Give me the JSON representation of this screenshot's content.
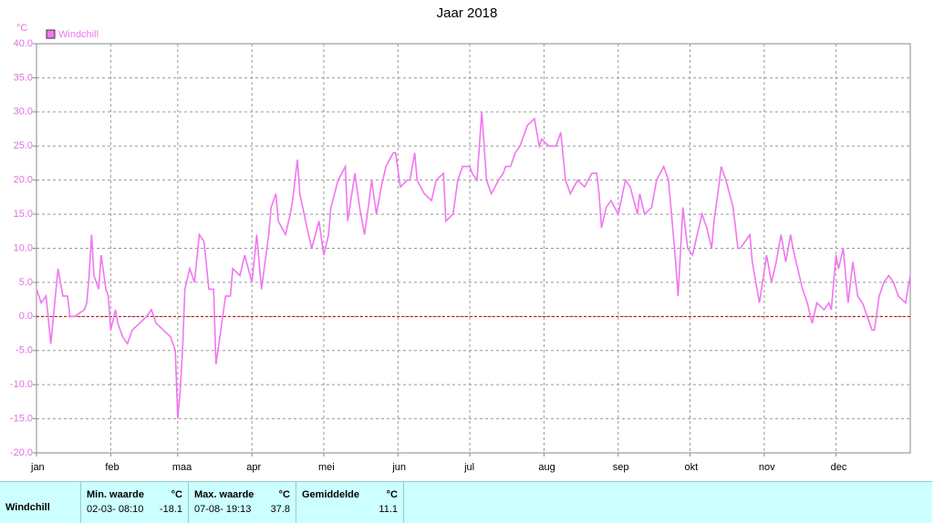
{
  "chart_data": {
    "type": "line",
    "title": "Jaar 2018",
    "y_label": "°C",
    "xlim": [
      0,
      365
    ],
    "xticks": [
      {
        "value": 0,
        "label": "jan"
      },
      {
        "value": 31,
        "label": "feb"
      },
      {
        "value": 59,
        "label": "maa"
      },
      {
        "value": 90,
        "label": "apr"
      },
      {
        "value": 120,
        "label": "mei"
      },
      {
        "value": 151,
        "label": "jun"
      },
      {
        "value": 181,
        "label": "jul"
      },
      {
        "value": 212,
        "label": "aug"
      },
      {
        "value": 243,
        "label": "sep"
      },
      {
        "value": 273,
        "label": "okt"
      },
      {
        "value": 304,
        "label": "nov"
      },
      {
        "value": 334,
        "label": "dec"
      }
    ],
    "ylim": [
      -20,
      40
    ],
    "yticks": [
      {
        "value": 40,
        "label": "40.0"
      },
      {
        "value": 35,
        "label": "35.0"
      },
      {
        "value": 30,
        "label": "30.0"
      },
      {
        "value": 25,
        "label": "25.0"
      },
      {
        "value": 20,
        "label": "20.0"
      },
      {
        "value": 15,
        "label": "15.0"
      },
      {
        "value": 10,
        "label": "10.0"
      },
      {
        "value": 5,
        "label": "5.0"
      },
      {
        "value": 0,
        "label": "0.0"
      },
      {
        "value": -5,
        "label": "-5.0"
      },
      {
        "value": -10,
        "label": "-10.0"
      },
      {
        "value": -15,
        "label": "-15.0"
      },
      {
        "value": -20,
        "label": "-20.0"
      }
    ],
    "grid": true,
    "hline": 0,
    "hline_color": "#cc0000",
    "legend": "top-left",
    "series": [
      {
        "name": "Windchill",
        "color": "#f077f0",
        "x": [
          0,
          2,
          4,
          6,
          9,
          11,
          13,
          14,
          16,
          20,
          21,
          22,
          23,
          24,
          26,
          27,
          29,
          30,
          31,
          33,
          34,
          36,
          38,
          40,
          43,
          46,
          48,
          50,
          53,
          56,
          58,
          59,
          60,
          61,
          62,
          64,
          66,
          68,
          70,
          72,
          74,
          75,
          77,
          79,
          81,
          82,
          85,
          87,
          90,
          92,
          94,
          97,
          98,
          100,
          101,
          104,
          106,
          107,
          109,
          110,
          113,
          115,
          118,
          120,
          122,
          123,
          126,
          129,
          130,
          133,
          135,
          137,
          139,
          140,
          142,
          144,
          146,
          149,
          150,
          152,
          155,
          156,
          158,
          159,
          162,
          165,
          167,
          170,
          171,
          174,
          176,
          178,
          181,
          182,
          184,
          186,
          188,
          190,
          193,
          195,
          196,
          198,
          200,
          202,
          205,
          208,
          210,
          211,
          214,
          217,
          219,
          221,
          223,
          226,
          229,
          232,
          234,
          235,
          236,
          238,
          240,
          243,
          246,
          248,
          251,
          252,
          254,
          257,
          259,
          262,
          264,
          266,
          267,
          268,
          270,
          272,
          274,
          276,
          278,
          280,
          282,
          283,
          285,
          286,
          288,
          291,
          293,
          294,
          296,
          298,
          299,
          301,
          302,
          305,
          307,
          309,
          311,
          313,
          315,
          316,
          318,
          320,
          322,
          324,
          326,
          329,
          331,
          332,
          334,
          335,
          337,
          339,
          341,
          343,
          345,
          347,
          349,
          350,
          352,
          354,
          356,
          358,
          360,
          363,
          365
        ],
        "values": [
          4,
          2,
          3,
          -4,
          7,
          3,
          3,
          0,
          0,
          1,
          2,
          6,
          12,
          6,
          4,
          9,
          4,
          3,
          -2,
          1,
          -1,
          -3,
          -4,
          -2,
          -1,
          0,
          1,
          -1,
          -2,
          -3,
          -5,
          -15,
          -11,
          -5,
          4,
          7,
          5,
          12,
          11,
          4,
          4,
          -7,
          -2,
          3,
          3,
          7,
          6,
          9,
          5,
          12,
          4,
          12,
          16,
          18,
          14,
          12,
          15,
          17,
          23,
          18,
          13,
          10,
          14,
          9,
          12,
          16,
          20,
          22,
          14,
          21,
          16,
          12,
          17,
          20,
          15,
          19,
          22,
          24,
          24,
          19,
          20,
          20,
          24,
          20,
          18,
          17,
          20,
          21,
          14,
          15,
          20,
          22,
          22,
          21,
          20,
          30,
          20,
          18,
          20,
          21,
          22,
          22,
          24,
          25,
          28,
          29,
          25,
          26,
          25,
          25,
          27,
          20,
          18,
          20,
          19,
          21,
          21,
          18,
          13,
          16,
          17,
          15,
          20,
          19,
          15,
          18,
          15,
          16,
          20,
          22,
          20,
          12,
          8,
          3,
          16,
          10,
          9,
          12,
          15,
          13,
          10,
          14,
          19,
          22,
          20,
          16,
          10,
          10,
          11,
          12,
          8,
          4,
          2,
          9,
          5,
          8,
          12,
          8,
          12,
          10,
          7,
          4,
          2,
          -1,
          2,
          1,
          2,
          1,
          9,
          7,
          10,
          2,
          8,
          3,
          2,
          0,
          -2,
          -2,
          3,
          5,
          6,
          5,
          3,
          2,
          6
        ]
      }
    ]
  },
  "stats": {
    "row_label": "Windchill",
    "columns": [
      {
        "header": "Min. waarde",
        "unit": "°C",
        "time": "02-03- 08:10",
        "value": -18.1
      },
      {
        "header": "Max. waarde",
        "unit": "°C",
        "time": "07-08- 19:13",
        "value": 37.8
      },
      {
        "header": "Gemiddelde",
        "unit": "°C",
        "value": 11.1
      }
    ]
  }
}
